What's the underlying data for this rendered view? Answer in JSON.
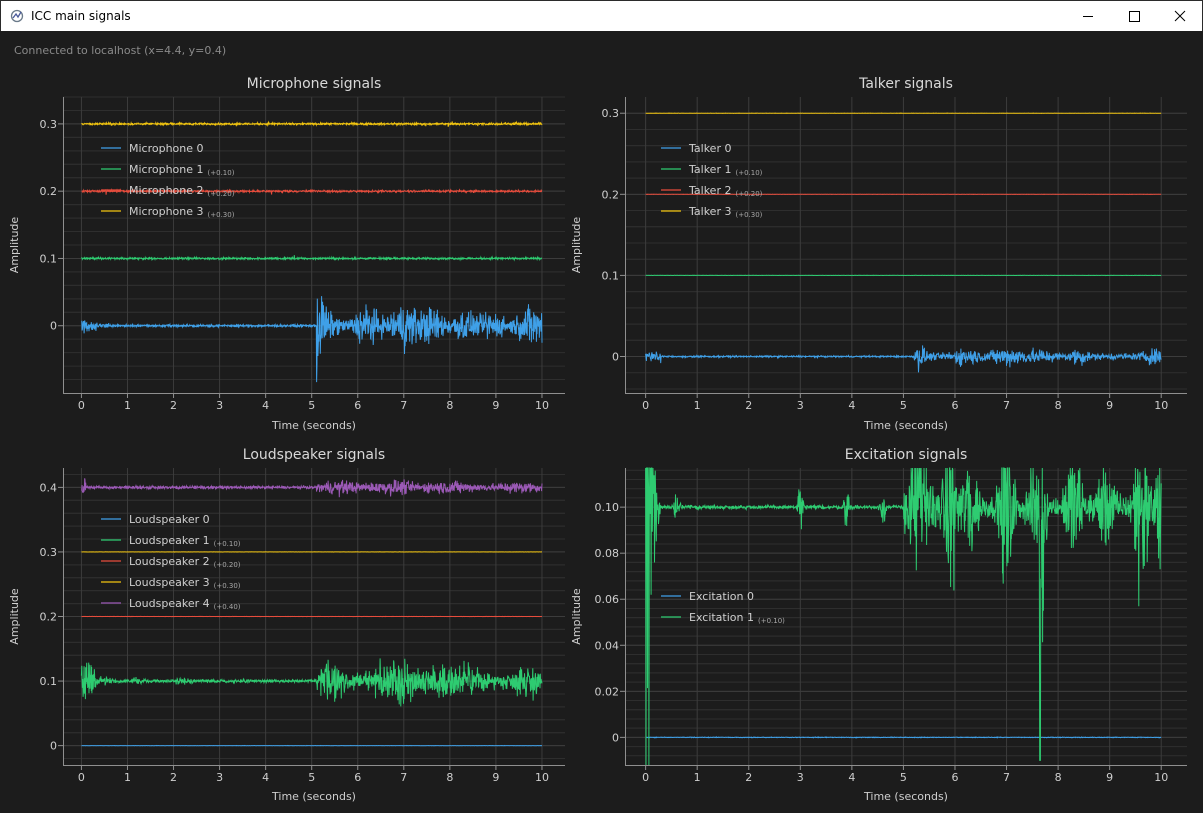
{
  "window": {
    "title": "ICC main signals",
    "icons": {
      "app": "app-icon",
      "minimize": "minimize-icon",
      "maximize": "maximize-icon",
      "close": "close-icon"
    }
  },
  "status_text": "Connected to localhost (x=4.4, y=0.4)",
  "colors": {
    "background": "#1c1c1c",
    "axis": "#8f8f8f",
    "grid": "#3c3c3c",
    "text": "#cfcfcf",
    "blue": "#3fa0e8",
    "green": "#2ecc71",
    "red": "#e74c3c",
    "yellow": "#f1c40f",
    "purple": "#9b59b6"
  },
  "chart_data": [
    {
      "type": "line",
      "title": "Microphone signals",
      "xlabel": "Time (seconds)",
      "ylabel": "Amplitude",
      "xlim": [
        -0.4,
        10.5
      ],
      "ylim": [
        -0.1,
        0.34
      ],
      "xticks": [
        0,
        1,
        2,
        3,
        4,
        5,
        6,
        7,
        8,
        9,
        10
      ],
      "yticks": [
        0,
        0.1,
        0.2,
        0.3
      ],
      "grid": true,
      "legend_position": "top-left",
      "series": [
        {
          "name": "Microphone 0",
          "offset_note": "",
          "offset": 0.0,
          "color": "#3fa0e8",
          "profile": "mic0"
        },
        {
          "name": "Microphone 1",
          "offset_note": "(+0.10)",
          "offset": 0.1,
          "color": "#2ecc71",
          "profile": "flat"
        },
        {
          "name": "Microphone 2",
          "offset_note": "(+0.20)",
          "offset": 0.2,
          "color": "#e74c3c",
          "profile": "flat"
        },
        {
          "name": "Microphone 3",
          "offset_note": "(+0.30)",
          "offset": 0.3,
          "color": "#f1c40f",
          "profile": "flat"
        }
      ]
    },
    {
      "type": "line",
      "title": "Talker signals",
      "xlabel": "Time (seconds)",
      "ylabel": "Amplitude",
      "xlim": [
        -0.4,
        10.5
      ],
      "ylim": [
        -0.045,
        0.32
      ],
      "xticks": [
        0,
        1,
        2,
        3,
        4,
        5,
        6,
        7,
        8,
        9,
        10
      ],
      "yticks": [
        0,
        0.1,
        0.2,
        0.3
      ],
      "grid": true,
      "legend_position": "top-left",
      "series": [
        {
          "name": "Talker 0",
          "offset_note": "",
          "offset": 0.0,
          "color": "#3fa0e8",
          "profile": "talker0"
        },
        {
          "name": "Talker 1",
          "offset_note": "(+0.10)",
          "offset": 0.1,
          "color": "#2ecc71",
          "profile": "clean"
        },
        {
          "name": "Talker 2",
          "offset_note": "(+0.20)",
          "offset": 0.2,
          "color": "#e74c3c",
          "profile": "clean"
        },
        {
          "name": "Talker 3",
          "offset_note": "(+0.30)",
          "offset": 0.3,
          "color": "#f1c40f",
          "profile": "clean"
        }
      ]
    },
    {
      "type": "line",
      "title": "Loudspeaker signals",
      "xlabel": "Time (seconds)",
      "ylabel": "Amplitude",
      "xlim": [
        -0.4,
        10.5
      ],
      "ylim": [
        -0.03,
        0.43
      ],
      "xticks": [
        0,
        1,
        2,
        3,
        4,
        5,
        6,
        7,
        8,
        9,
        10
      ],
      "yticks": [
        0,
        0.1,
        0.2,
        0.3,
        0.4
      ],
      "grid": true,
      "legend_position": "top-left",
      "series": [
        {
          "name": "Loudspeaker 0",
          "offset_note": "",
          "offset": 0.0,
          "color": "#3fa0e8",
          "profile": "clean"
        },
        {
          "name": "Loudspeaker 1",
          "offset_note": "(+0.10)",
          "offset": 0.1,
          "color": "#2ecc71",
          "profile": "speech"
        },
        {
          "name": "Loudspeaker 2",
          "offset_note": "(+0.20)",
          "offset": 0.2,
          "color": "#e74c3c",
          "profile": "clean"
        },
        {
          "name": "Loudspeaker 3",
          "offset_note": "(+0.30)",
          "offset": 0.3,
          "color": "#f1c40f",
          "profile": "clean"
        },
        {
          "name": "Loudspeaker 4",
          "offset_note": "(+0.40)",
          "offset": 0.4,
          "color": "#9b59b6",
          "profile": "speechsmall"
        }
      ]
    },
    {
      "type": "line",
      "title": "Excitation signals",
      "xlabel": "Time (seconds)",
      "ylabel": "Amplitude",
      "xlim": [
        -0.4,
        10.5
      ],
      "ylim": [
        -0.012,
        0.117
      ],
      "xticks": [
        0,
        1,
        2,
        3,
        4,
        5,
        6,
        7,
        8,
        9,
        10
      ],
      "yticks": [
        0,
        0.02,
        0.04,
        0.06,
        0.08,
        0.1
      ],
      "grid": true,
      "legend_position": "middle-left",
      "series": [
        {
          "name": "Excitation 0",
          "offset_note": "",
          "offset": 0.0,
          "color": "#3fa0e8",
          "profile": "clean"
        },
        {
          "name": "Excitation 1",
          "offset_note": "(+0.10)",
          "offset": 0.1,
          "color": "#2ecc71",
          "profile": "excite"
        }
      ]
    }
  ]
}
